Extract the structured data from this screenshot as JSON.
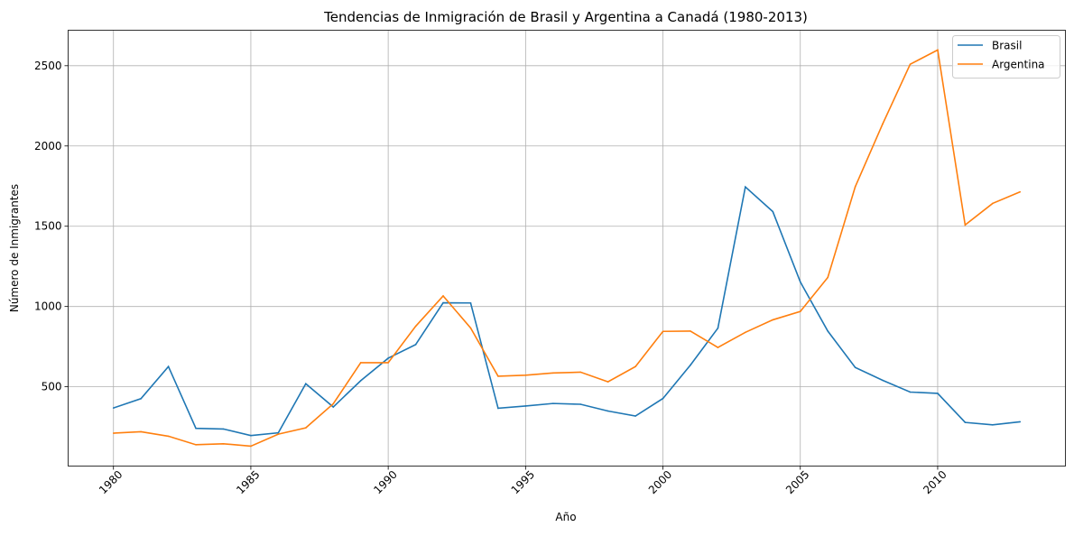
{
  "chart_data": {
    "type": "line",
    "title": "Tendencias de Inmigración de Brasil y Argentina a Canadá (1980-2013)",
    "xlabel": "Año",
    "ylabel": "Número de Inmigrantes",
    "x": [
      1980,
      1981,
      1982,
      1983,
      1984,
      1985,
      1986,
      1987,
      1988,
      1989,
      1990,
      1991,
      1992,
      1993,
      1994,
      1995,
      1996,
      1997,
      1998,
      1999,
      2000,
      2001,
      2002,
      2003,
      2004,
      2005,
      2006,
      2007,
      2008,
      2009,
      2010,
      2011,
      2012,
      2013
    ],
    "xticks": [
      "1980",
      "1985",
      "1990",
      "1995",
      "2000",
      "2005",
      "2010"
    ],
    "yticks": [
      "500",
      "1000",
      "1500",
      "2000",
      "2500"
    ],
    "xlim": [
      1978.35,
      2014.65
    ],
    "ylim": [
      6,
      2721
    ],
    "grid": true,
    "legend_position": "top-right",
    "series": [
      {
        "name": "Brasil",
        "color": "#1f77b4",
        "values": [
          368,
          426,
          626,
          241,
          237,
          196,
          213,
          519,
          374,
          538,
          678,
          763,
          1023,
          1022,
          366,
          380,
          396,
          391,
          349,
          318,
          427,
          635,
          865,
          1745,
          1591,
          1153,
          847,
          620,
          540,
          467,
          459,
          278,
          263,
          282
        ]
      },
      {
        "name": "Argentina",
        "color": "#ff7f0e",
        "values": [
          211,
          220,
          192,
          139,
          145,
          130,
          205,
          244,
          394,
          650,
          650,
          877,
          1066,
          866,
          566,
          572,
          586,
          591,
          531,
          626,
          845,
          847,
          745,
          839,
          917,
          969,
          1181,
          1746,
          2138,
          2509,
          2598,
          1508,
          1642,
          1714
        ]
      }
    ]
  }
}
